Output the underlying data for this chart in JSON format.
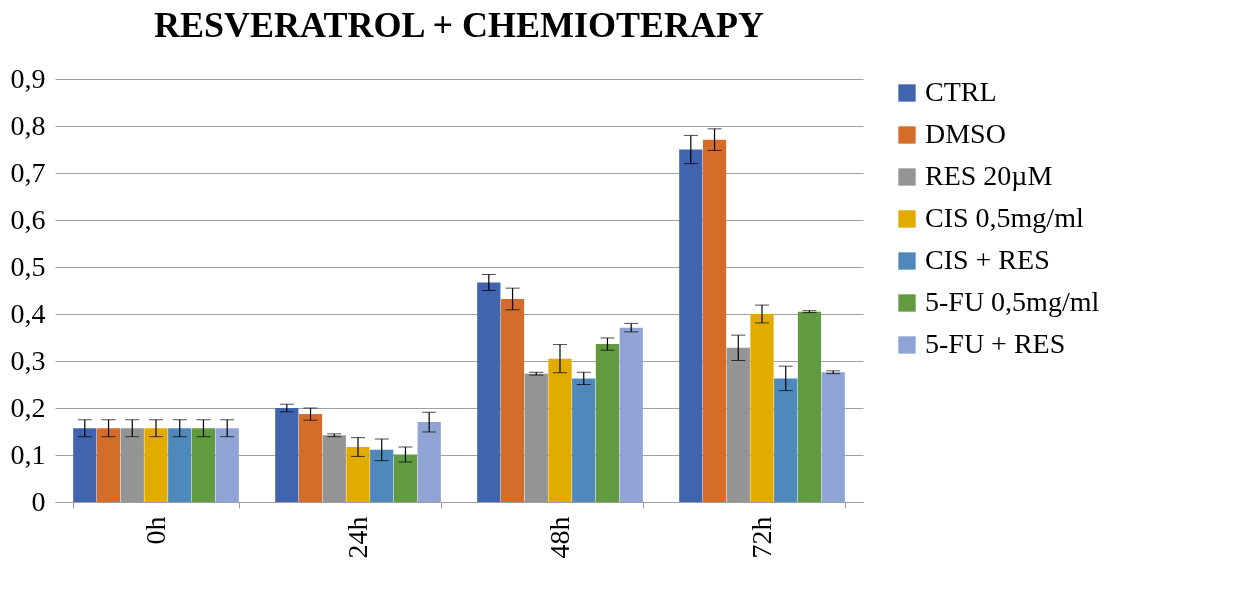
{
  "chart_data": {
    "type": "bar",
    "title": "RESVERATROL + CHEMIOTERAPY",
    "categories": [
      "0h",
      "24h",
      "48h",
      "72h"
    ],
    "series": [
      {
        "name": "CTRL",
        "color": "#4064ad",
        "values": [
          0.157,
          0.2,
          0.467,
          0.75
        ],
        "errors": [
          0.018,
          0.008,
          0.017,
          0.03
        ]
      },
      {
        "name": "DMSO",
        "color": "#d46d2a",
        "values": [
          0.157,
          0.187,
          0.432,
          0.771
        ],
        "errors": [
          0.018,
          0.013,
          0.023,
          0.023
        ]
      },
      {
        "name": "RES 20µM",
        "color": "#949494",
        "values": [
          0.157,
          0.142,
          0.273,
          0.328
        ],
        "errors": [
          0.018,
          0.003,
          0.003,
          0.027
        ]
      },
      {
        "name": "CIS 0,5mg/ml",
        "color": "#e2ab00",
        "values": [
          0.157,
          0.117,
          0.305,
          0.4
        ],
        "errors": [
          0.018,
          0.02,
          0.03,
          0.019
        ]
      },
      {
        "name": "CIS + RES",
        "color": "#4f89bc",
        "values": [
          0.157,
          0.111,
          0.263,
          0.263
        ],
        "errors": [
          0.018,
          0.023,
          0.013,
          0.026
        ]
      },
      {
        "name": "5-FU 0,5mg/ml",
        "color": "#629a42",
        "values": [
          0.157,
          0.101,
          0.336,
          0.405
        ],
        "errors": [
          0.018,
          0.016,
          0.013,
          0.002
        ]
      },
      {
        "name": "5-FU + RES",
        "color": "#8fa4d4",
        "values": [
          0.157,
          0.17,
          0.371,
          0.276
        ],
        "errors": [
          0.018,
          0.021,
          0.009,
          0.003
        ]
      }
    ],
    "ylim": [
      0,
      0.9
    ],
    "yticks": [
      0,
      {
        "value": 0.1,
        "label": "0,1"
      },
      {
        "value": 0.2,
        "label": "0,2"
      },
      {
        "value": 0.3,
        "label": "0,3"
      },
      {
        "value": 0.4,
        "label": "0,4"
      },
      {
        "value": 0.5,
        "label": "0,5"
      },
      {
        "value": 0.6,
        "label": "0,6"
      },
      {
        "value": 0.7,
        "label": "0,7"
      },
      {
        "value": 0.8,
        "label": "0,8"
      },
      {
        "value": 0.9,
        "label": "0,9"
      }
    ],
    "grid": "y",
    "legend": "right"
  }
}
